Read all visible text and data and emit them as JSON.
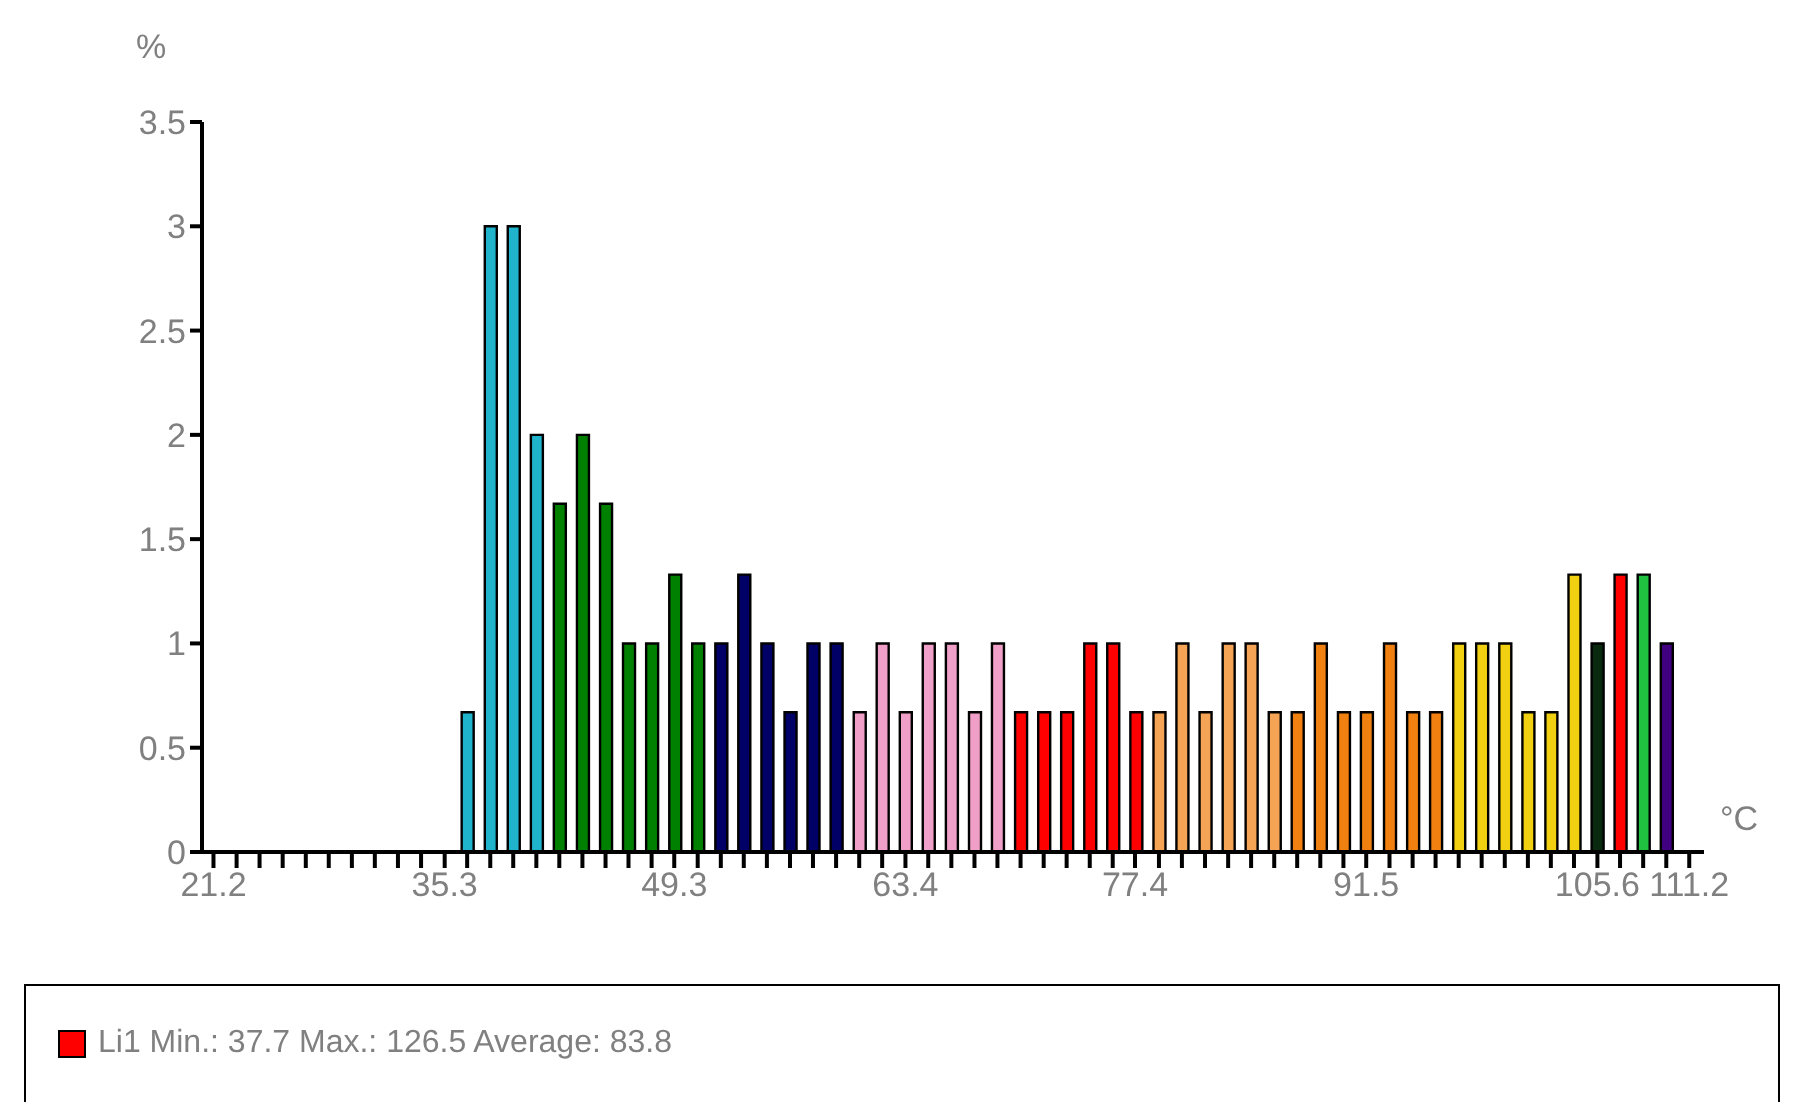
{
  "chart_data": {
    "type": "bar",
    "xlabel": "°C",
    "ylabel": "%",
    "x": [
      36.67,
      38.08,
      39.48,
      40.89,
      42.29,
      43.7,
      45.11,
      46.51,
      47.92,
      49.33,
      50.73,
      52.14,
      53.54,
      54.95,
      56.36,
      57.76,
      59.17,
      60.58,
      61.98,
      63.39,
      64.79,
      66.2,
      67.61,
      69.01,
      70.42,
      71.83,
      73.23,
      74.64,
      76.04,
      77.45,
      78.86,
      80.26,
      81.67,
      83.08,
      84.48,
      85.89,
      87.29,
      88.7,
      90.11,
      91.51,
      92.92,
      94.33,
      95.73,
      97.14,
      98.54,
      99.95,
      101.36,
      102.76,
      104.17,
      105.58,
      106.98,
      108.39,
      109.8
    ],
    "series": [
      {
        "name": "Li1 Min.: 37.7 Max.: 126.5 Average: 83.8",
        "color": "#ff0000",
        "values": [
          0.67,
          3,
          3,
          2,
          1.67,
          2,
          1.67,
          1,
          1,
          1.33,
          1,
          1,
          1.33,
          1,
          0.67,
          1,
          1,
          0.67,
          1,
          0.67,
          1,
          1,
          0.67,
          1,
          0.67,
          0.67,
          0.67,
          1,
          1,
          0.67,
          0.67,
          1,
          0.67,
          1,
          1,
          0.67,
          0.67,
          1,
          0.67,
          0.67,
          1,
          0.67,
          0.67,
          1,
          1,
          1,
          0.67,
          0.67,
          1.33,
          1,
          1.33,
          1.33,
          1
        ],
        "colors": [
          "#20b4cc",
          "#20b4cc",
          "#20b4cc",
          "#20b4cc",
          "#008000",
          "#008000",
          "#008000",
          "#008000",
          "#008000",
          "#008000",
          "#008000",
          "#000066",
          "#000066",
          "#000066",
          "#000066",
          "#000066",
          "#000066",
          "#f0a0c8",
          "#f0a0c8",
          "#f0a0c8",
          "#f0a0c8",
          "#f0a0c8",
          "#f0a0c8",
          "#f0a0c8",
          "#ff0000",
          "#ff0000",
          "#ff0000",
          "#ff0000",
          "#ff0000",
          "#ff0000",
          "#f5a455",
          "#f5a455",
          "#f5a455",
          "#f5a455",
          "#f5a455",
          "#f5a455",
          "#f08010",
          "#f08010",
          "#f08010",
          "#f08010",
          "#f08010",
          "#f08010",
          "#f08010",
          "#f0d010",
          "#f0d010",
          "#f0d010",
          "#f0d010",
          "#f0d010",
          "#f0d010",
          "#0a2a10",
          "#ff0000",
          "#20c040",
          "#400080"
        ]
      }
    ],
    "xlim": [
      20.5,
      112.1
    ],
    "xticks": [
      21.2,
      {
        "value": 22.61,
        "label": null
      },
      {
        "value": 24.01,
        "label": null
      },
      {
        "value": 25.42,
        "label": null
      },
      {
        "value": 26.83,
        "label": null
      },
      {
        "value": 28.23,
        "label": null
      },
      {
        "value": 29.64,
        "label": null
      },
      {
        "value": 31.04,
        "label": null
      },
      {
        "value": 32.45,
        "label": null
      },
      {
        "value": 33.86,
        "label": null
      },
      35.3,
      {
        "value": 36.67,
        "label": null
      },
      {
        "value": 38.08,
        "label": null
      },
      {
        "value": 39.48,
        "label": null
      },
      {
        "value": 40.89,
        "label": null
      },
      {
        "value": 42.29,
        "label": null
      },
      {
        "value": 43.7,
        "label": null
      },
      {
        "value": 45.11,
        "label": null
      },
      {
        "value": 46.51,
        "label": null
      },
      {
        "value": 47.92,
        "label": null
      },
      49.3,
      {
        "value": 50.73,
        "label": null
      },
      {
        "value": 52.14,
        "label": null
      },
      {
        "value": 53.54,
        "label": null
      },
      {
        "value": 54.95,
        "label": null
      },
      {
        "value": 56.36,
        "label": null
      },
      {
        "value": 57.76,
        "label": null
      },
      {
        "value": 59.17,
        "label": null
      },
      {
        "value": 60.58,
        "label": null
      },
      {
        "value": 61.98,
        "label": null
      },
      63.4,
      {
        "value": 64.79,
        "label": null
      },
      {
        "value": 66.2,
        "label": null
      },
      {
        "value": 67.61,
        "label": null
      },
      {
        "value": 69.01,
        "label": null
      },
      {
        "value": 70.42,
        "label": null
      },
      {
        "value": 71.83,
        "label": null
      },
      {
        "value": 73.23,
        "label": null
      },
      {
        "value": 74.64,
        "label": null
      },
      {
        "value": 76.04,
        "label": null
      },
      77.4,
      {
        "value": 78.86,
        "label": null
      },
      {
        "value": 80.26,
        "label": null
      },
      {
        "value": 81.67,
        "label": null
      },
      {
        "value": 83.08,
        "label": null
      },
      {
        "value": 84.48,
        "label": null
      },
      {
        "value": 85.89,
        "label": null
      },
      {
        "value": 87.29,
        "label": null
      },
      {
        "value": 88.7,
        "label": null
      },
      {
        "value": 90.11,
        "label": null
      },
      91.5,
      {
        "value": 92.92,
        "label": null
      },
      {
        "value": 94.33,
        "label": null
      },
      {
        "value": 95.73,
        "label": null
      },
      {
        "value": 97.14,
        "label": null
      },
      {
        "value": 98.54,
        "label": null
      },
      {
        "value": 99.95,
        "label": null
      },
      {
        "value": 101.36,
        "label": null
      },
      {
        "value": 102.76,
        "label": null
      },
      {
        "value": 104.17,
        "label": null
      },
      105.6,
      {
        "value": 106.98,
        "label": null
      },
      {
        "value": 108.39,
        "label": null
      },
      {
        "value": 109.8,
        "label": null
      },
      111.2
    ],
    "ylim": [
      0,
      3.5
    ],
    "yticks": [
      0,
      0.5,
      1,
      1.5,
      2,
      2.5,
      3,
      3.5
    ],
    "legend": "bottom"
  }
}
